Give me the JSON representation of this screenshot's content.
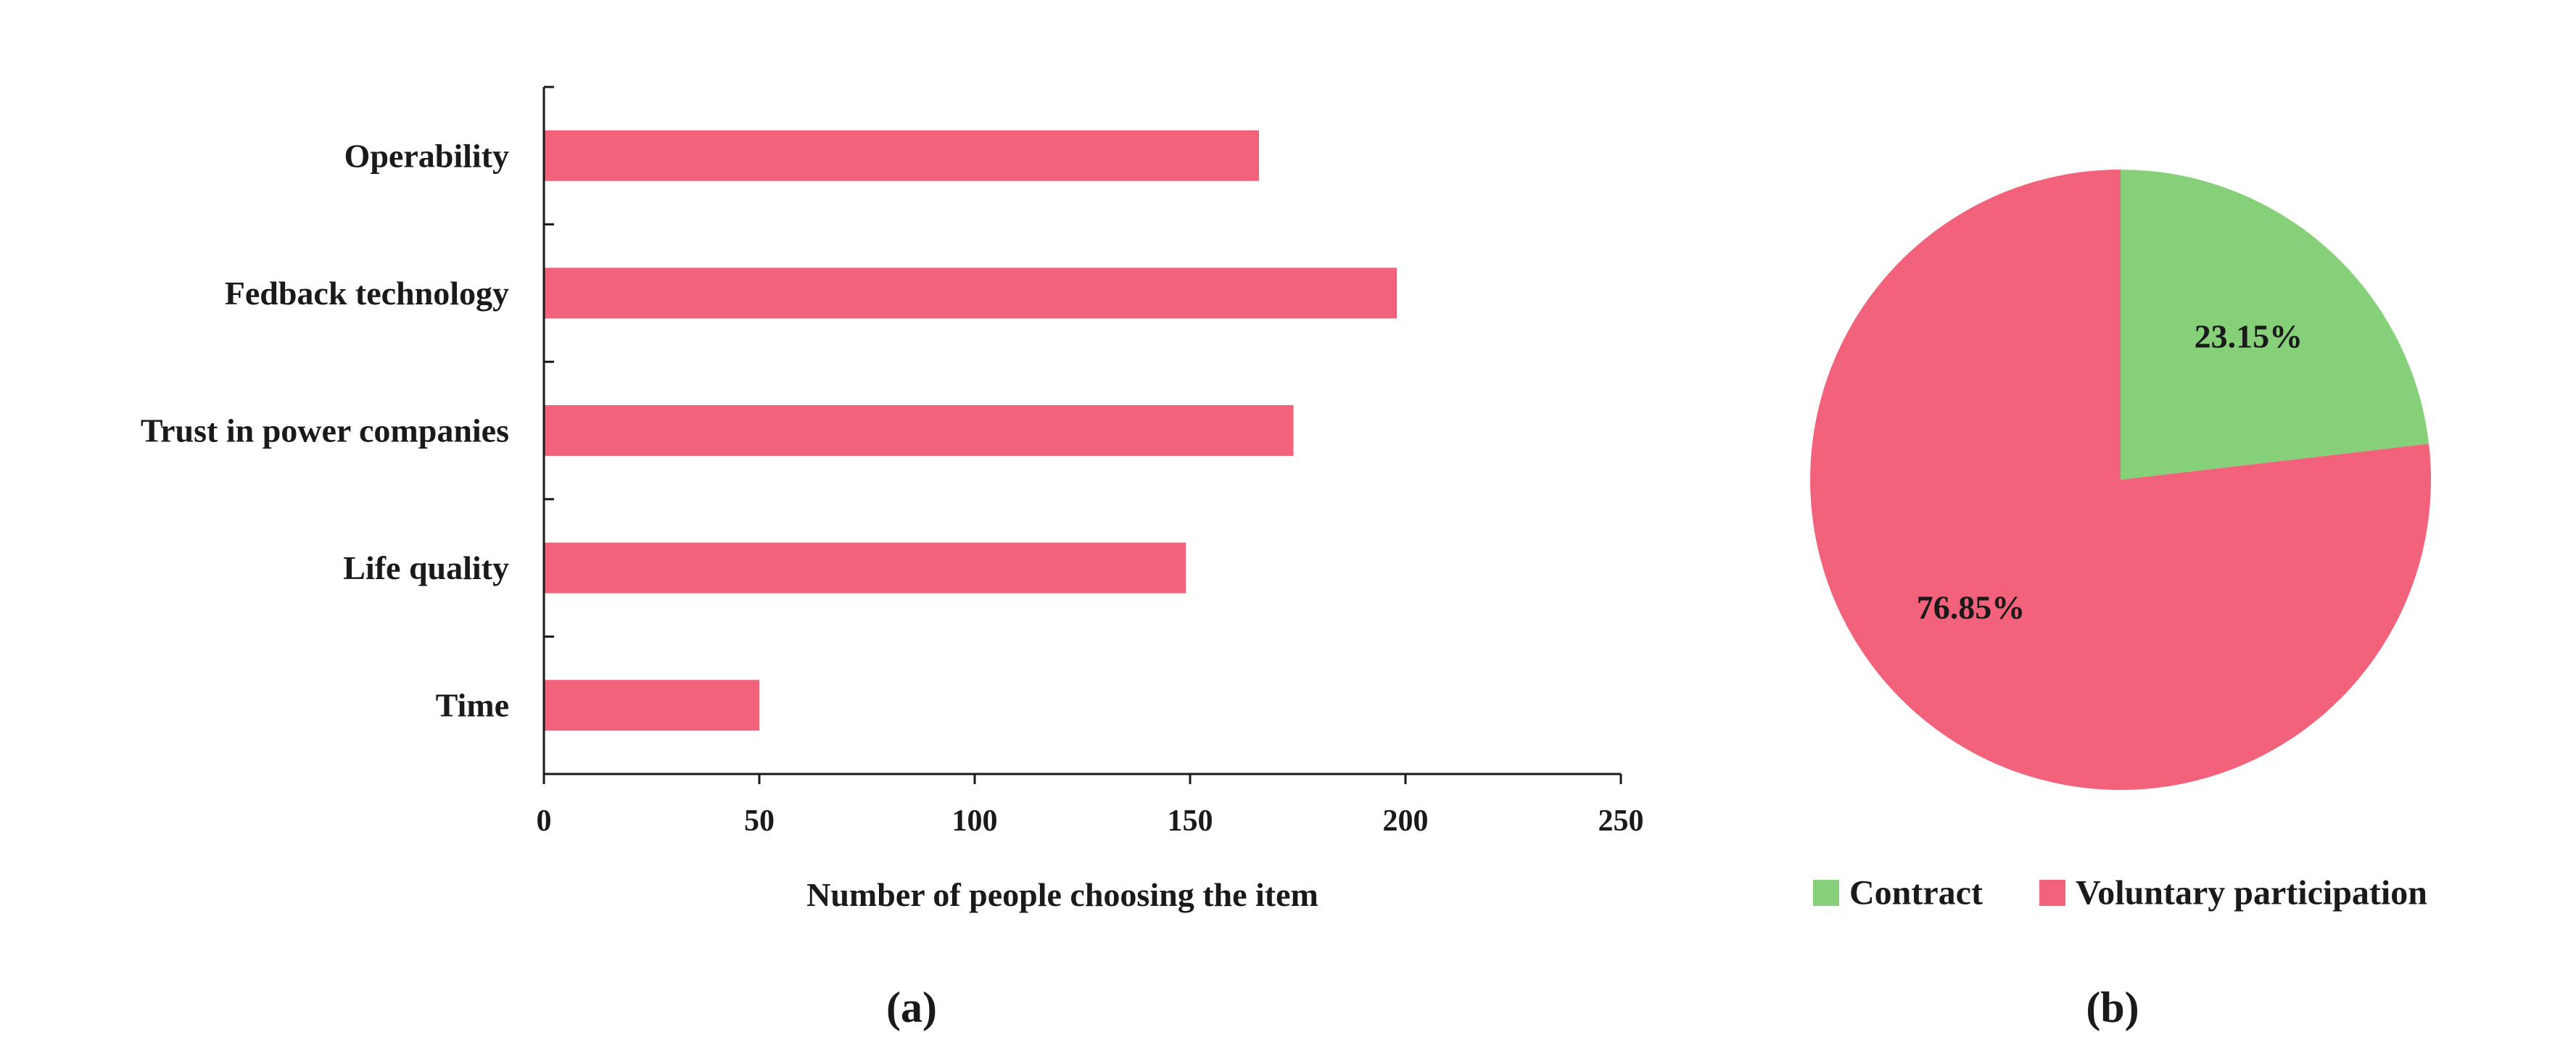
{
  "colors": {
    "voluntary": "#F2637B",
    "contract": "#86D07A"
  },
  "chart_data": [
    {
      "type": "bar",
      "orientation": "horizontal",
      "panel_label": "(a)",
      "title": "",
      "xlabel": "Number of people choosing the item",
      "ylabel": "",
      "xlim": [
        0,
        250
      ],
      "xticks": [
        "0",
        "50",
        "100",
        "150",
        "200",
        "250"
      ],
      "categories": [
        "Operability",
        "Fedback technology",
        "Trust in power companies",
        "Life quality",
        "Time"
      ],
      "values": [
        166,
        198,
        174,
        149,
        50
      ],
      "grid": false,
      "legend": "none"
    },
    {
      "type": "pie",
      "panel_label": "(b)",
      "title": "",
      "slices": [
        {
          "label": "Contract",
          "value": 23.15,
          "display": "23.15%"
        },
        {
          "label": "Voluntary participation",
          "value": 76.85,
          "display": "76.85%"
        }
      ],
      "legend": "bottom"
    }
  ]
}
